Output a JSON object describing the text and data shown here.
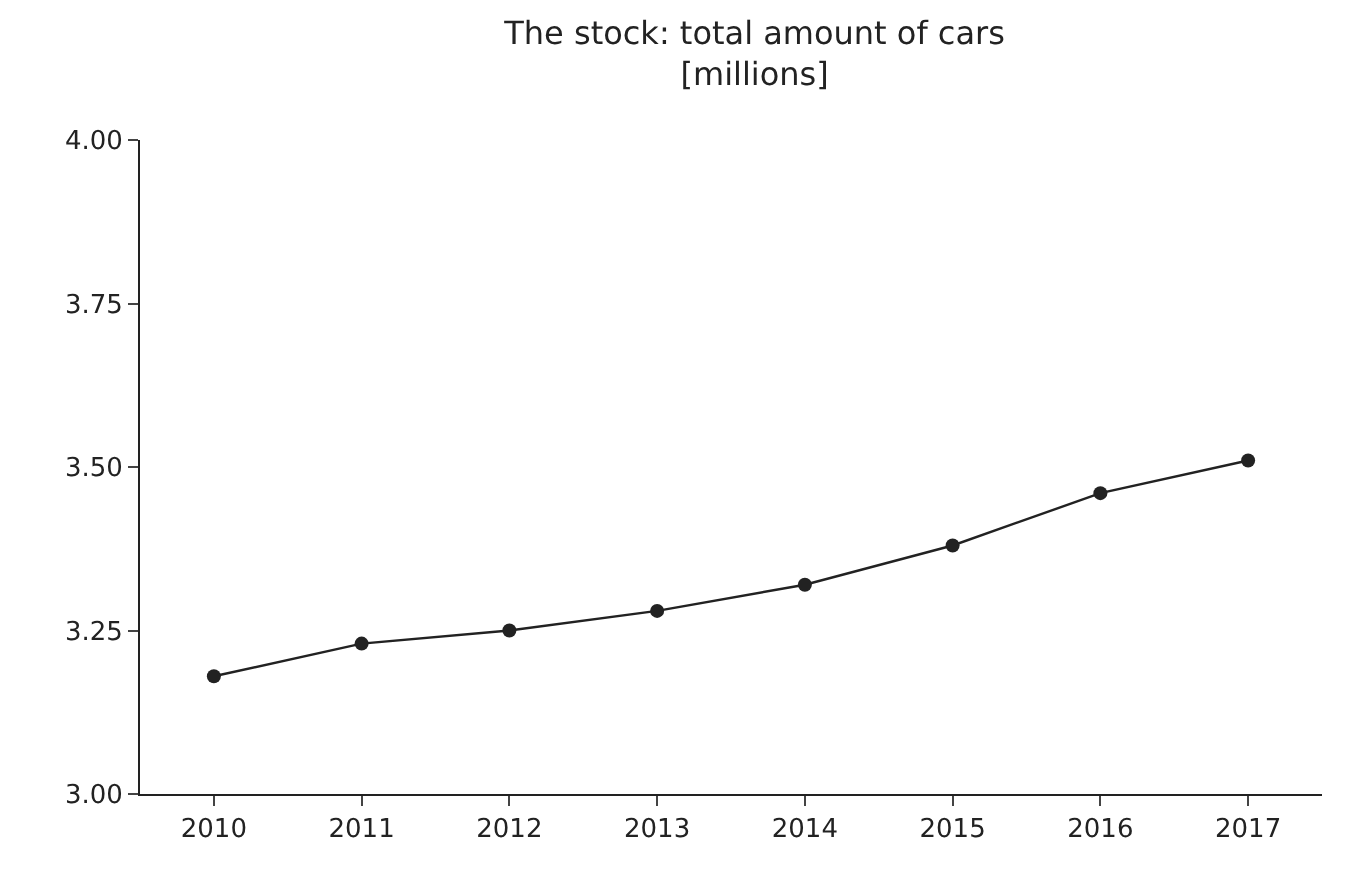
{
  "chart_data": {
    "type": "line",
    "title": "The stock: total amount of cars",
    "subtitle": "[millions]",
    "categories": [
      "2010",
      "2011",
      "2012",
      "2013",
      "2014",
      "2015",
      "2016",
      "2017"
    ],
    "series": [
      {
        "color": "#222222",
        "values": [
          3.18,
          3.23,
          3.25,
          3.28,
          3.32,
          3.38,
          3.46,
          3.51
        ]
      }
    ],
    "ylim": [
      3.0,
      4.0
    ],
    "yticks": [
      {
        "value": 3.0,
        "label": "3.00"
      },
      {
        "value": 3.25,
        "label": "3.25"
      },
      {
        "value": 3.5,
        "label": "3.50"
      },
      {
        "value": 3.75,
        "label": "3.75"
      },
      {
        "value": 4.0,
        "label": "4.00"
      }
    ],
    "legend": false,
    "marker": "circle",
    "line_style": "solid"
  }
}
